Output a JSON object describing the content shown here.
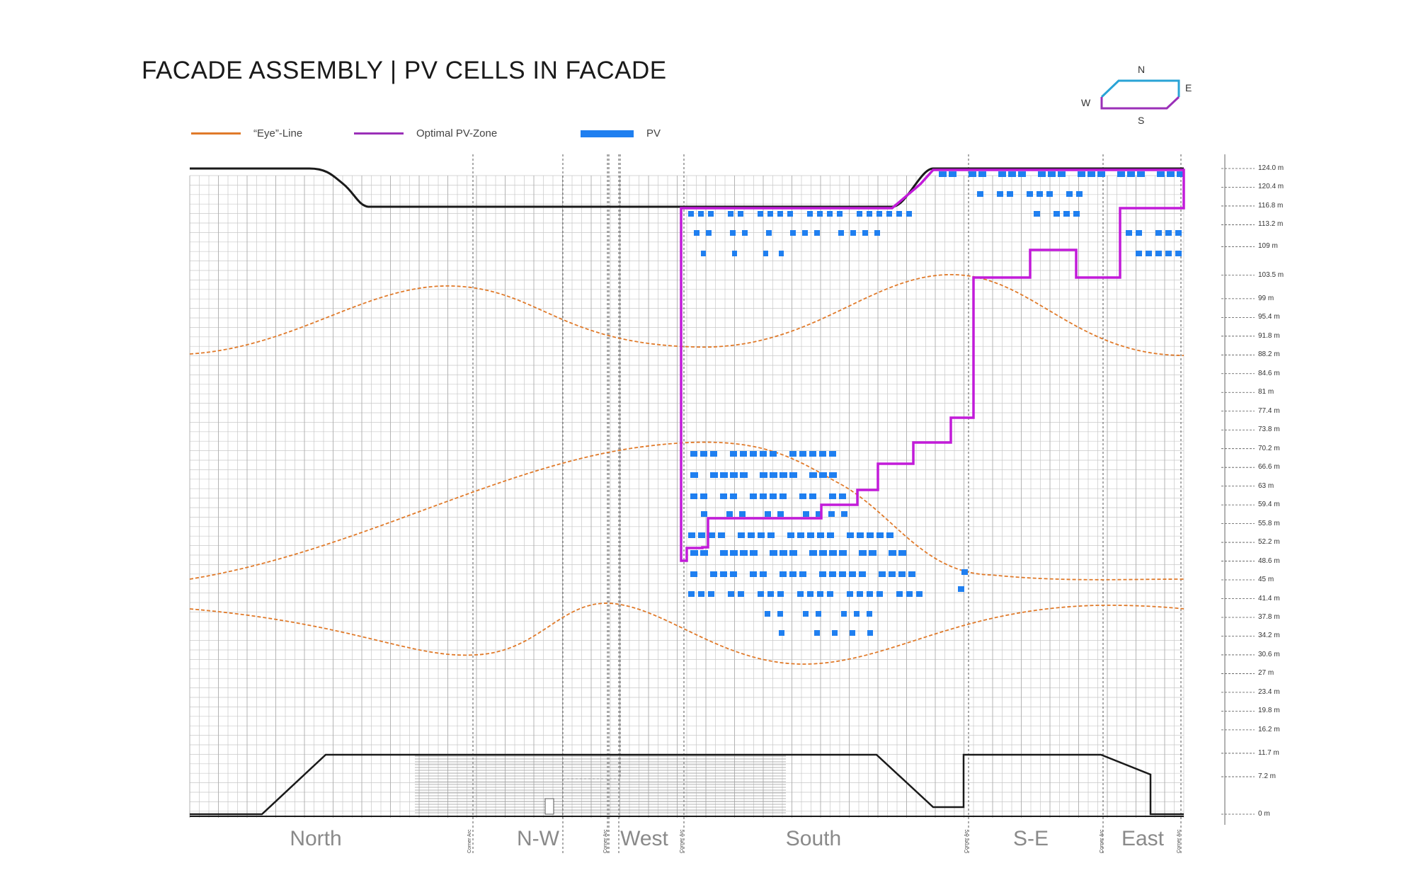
{
  "title": "FACADE ASSEMBLY | PV CELLS IN FACADE",
  "legend": {
    "eye_line": "“Eye”-Line",
    "optimal_zone": "Optimal PV-Zone",
    "pv": "PV"
  },
  "colors": {
    "eye_line": "#e07a2a",
    "optimal_zone": "#c21bd9",
    "pv": "#1f7ff0",
    "outline": "#1a1a1a",
    "grid": "#c8c8c8"
  },
  "compass": {
    "north": "N",
    "east": "E",
    "south": "S",
    "west": "W"
  },
  "levels": [
    "124.0 m",
    "120.4 m",
    "116.8 m",
    "113.2 m",
    "109 m",
    "103.5 m",
    "99 m",
    "95.4 m",
    "91.8 m",
    "88.2 m",
    "84.6 m",
    "81 m",
    "77.4 m",
    "73.8 m",
    "70.2 m",
    "66.6 m",
    "63 m",
    "59.4 m",
    "55.8 m",
    "52.2 m",
    "48.6 m",
    "45 m",
    "41.4 m",
    "37.8 m",
    "34.2 m",
    "30.6 m",
    "27 m",
    "23.4 m",
    "19.8 m",
    "16.2 m",
    "11.7 m",
    "7.2 m",
    "0 m"
  ],
  "sections": [
    "North",
    "N-W",
    "West",
    "South",
    "S-E",
    "East"
  ],
  "corner_arc": "Corner Arc"
}
